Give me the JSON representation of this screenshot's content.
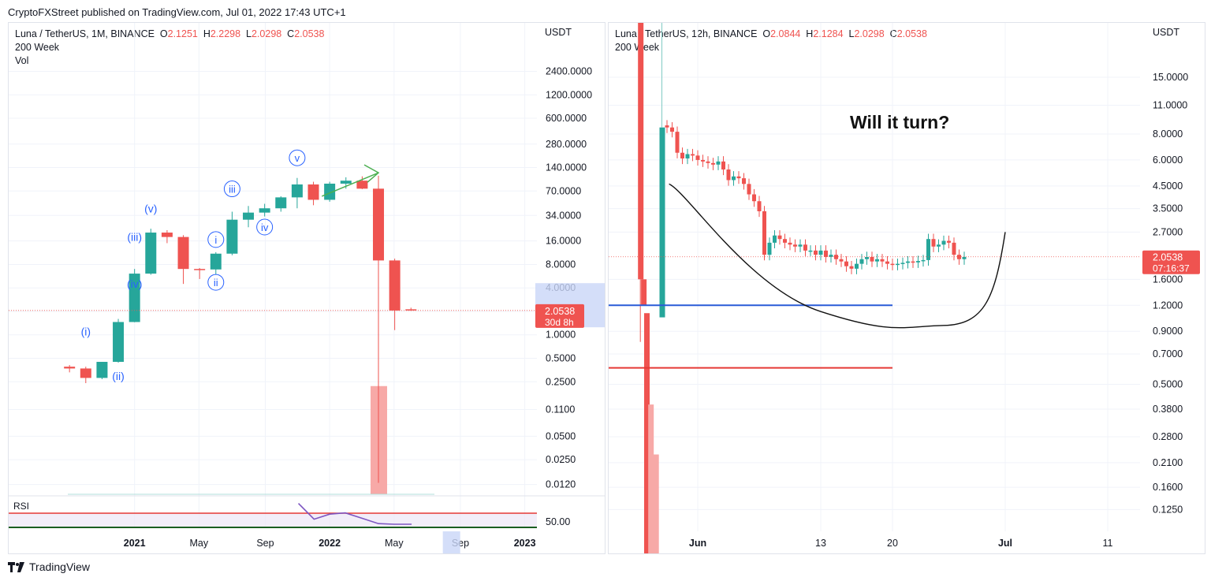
{
  "header": {
    "publisher": "CryptoFXStreet published on TradingView.com, Jul 01, 2022 17:43 UTC+1"
  },
  "brand": {
    "name": "TradingView",
    "icon": "tradingview-logo-icon"
  },
  "colors": {
    "up": "#26a69a",
    "down": "#ef5350",
    "grid": "#f0f3fa",
    "wave": "#2962ff"
  },
  "chart_data": [
    {
      "type": "candlestick",
      "symbol": "Luna / TetherUS, 1M, BINANCE",
      "ohlc_label": {
        "o": "O",
        "o_val": "2.1251",
        "h": "H",
        "h_val": "2.2298",
        "l": "L",
        "l_val": "2.0298",
        "c": "C",
        "c_val": "2.0538"
      },
      "indicators": [
        "200 Week",
        "Vol"
      ],
      "y_axis_title": "USDT",
      "y_scale": "log",
      "ylim": [
        0.009,
        5000
      ],
      "y_ticks": [
        "2400.0000",
        "1200.0000",
        "600.0000",
        "280.0000",
        "140.0000",
        "70.0000",
        "34.0000",
        "16.0000",
        "8.0000",
        "4.0000",
        "2.0000",
        "1.0000",
        "0.5000",
        "0.2500",
        "0.1100",
        "0.0500",
        "0.0250",
        "0.0120"
      ],
      "last_price": "2.0538",
      "countdown": "30d 8h",
      "x_ticks": [
        "2021",
        "May",
        "Sep",
        "2022",
        "May",
        "Sep",
        "2023"
      ],
      "candles": [
        {
          "date": "2020-09",
          "o": 0.39,
          "h": 0.41,
          "l": 0.33,
          "c": 0.37
        },
        {
          "date": "2020-10",
          "o": 0.37,
          "h": 0.39,
          "l": 0.24,
          "c": 0.28
        },
        {
          "date": "2020-11",
          "o": 0.28,
          "h": 0.45,
          "l": 0.27,
          "c": 0.45
        },
        {
          "date": "2020-12",
          "o": 0.45,
          "h": 1.6,
          "l": 0.44,
          "c": 1.46
        },
        {
          "date": "2021-01",
          "o": 1.46,
          "h": 7.0,
          "l": 1.45,
          "c": 6.1
        },
        {
          "date": "2021-02",
          "o": 6.1,
          "h": 23.0,
          "l": 5.9,
          "c": 20.5
        },
        {
          "date": "2021-03",
          "o": 20.5,
          "h": 22.0,
          "l": 15.0,
          "c": 18.0
        },
        {
          "date": "2021-04",
          "o": 18.0,
          "h": 19.0,
          "l": 4.5,
          "c": 7.0
        },
        {
          "date": "2021-05",
          "o": 7.0,
          "h": 7.2,
          "l": 5.2,
          "c": 6.9
        },
        {
          "date": "2021-06",
          "o": 6.9,
          "h": 11.5,
          "l": 5.9,
          "c": 11.0
        },
        {
          "date": "2021-07",
          "o": 11.0,
          "h": 38.0,
          "l": 10.5,
          "c": 30.0
        },
        {
          "date": "2021-08",
          "o": 30.0,
          "h": 45.0,
          "l": 24.0,
          "c": 37.0
        },
        {
          "date": "2021-09",
          "o": 37.0,
          "h": 48.0,
          "l": 33.0,
          "c": 42.0
        },
        {
          "date": "2021-10",
          "o": 42.0,
          "h": 60.0,
          "l": 38.0,
          "c": 58.0
        },
        {
          "date": "2021-11",
          "o": 58.0,
          "h": 103.0,
          "l": 42.0,
          "c": 85.0
        },
        {
          "date": "2021-12",
          "o": 85.0,
          "h": 92.0,
          "l": 46.0,
          "c": 54.0
        },
        {
          "date": "2022-01",
          "o": 54.0,
          "h": 92.0,
          "l": 51.0,
          "c": 87.0
        },
        {
          "date": "2022-02",
          "o": 87.0,
          "h": 105.0,
          "l": 75.0,
          "c": 95.0
        },
        {
          "date": "2022-03",
          "o": 95.0,
          "h": 108.0,
          "l": 74.0,
          "c": 75.0
        },
        {
          "date": "2022-04",
          "o": 75.0,
          "h": 110.0,
          "l": 0.00012,
          "c": 9.0
        },
        {
          "date": "2022-05",
          "o": 9.0,
          "h": 9.5,
          "l": 1.15,
          "c": 2.05
        },
        {
          "date": "2022-06",
          "o": 2.1251,
          "h": 2.2298,
          "l": 2.0298,
          "c": 2.0538
        }
      ],
      "wave_labels": [
        "(i)",
        "(ii)",
        "(iii)",
        "(iv)",
        "(v)",
        "i",
        "ii",
        "iii",
        "iv",
        "v"
      ],
      "rsi": {
        "label": "RSI",
        "tick": "50.00",
        "values": [
          88,
          63,
          71,
          73,
          64,
          56,
          55,
          55
        ]
      }
    },
    {
      "type": "candlestick",
      "symbol": "Luna / TetherUS, 12h, BINANCE",
      "ohlc_label": {
        "o": "O",
        "o_val": "2.0844",
        "h": "H",
        "h_val": "2.1284",
        "l": "L",
        "l_val": "2.0298",
        "c": "C",
        "c_val": "2.0538"
      },
      "indicators": [
        "200 Week"
      ],
      "y_axis_title": "USDT",
      "y_scale": "log",
      "ylim": [
        0.11,
        20
      ],
      "y_ticks": [
        "15.0000",
        "11.0000",
        "8.0000",
        "6.0000",
        "4.5000",
        "3.5000",
        "2.7000",
        "1.6000",
        "1.2000",
        "0.9000",
        "0.7000",
        "0.5000",
        "0.3800",
        "0.2800",
        "0.2100",
        "0.1600",
        "0.1250"
      ],
      "last_price": "2.0538",
      "countdown": "07:16:37",
      "x_ticks": [
        "Jun",
        "13",
        "20",
        "Jul",
        "11"
      ],
      "annotation": "Will it turn?",
      "horizontal_levels": [
        {
          "value": 1.2,
          "color": "#2a5bd7"
        },
        {
          "value": 0.6,
          "color": "#e53935"
        }
      ],
      "closes": [
        8.6,
        8.2,
        6.5,
        6.1,
        6.4,
        6.3,
        6.0,
        5.9,
        5.8,
        5.7,
        5.9,
        5.4,
        4.8,
        5.0,
        4.9,
        4.6,
        4.1,
        3.8,
        3.4,
        2.1,
        2.4,
        2.6,
        2.5,
        2.4,
        2.35,
        2.3,
        2.35,
        2.2,
        2.2,
        2.1,
        2.2,
        2.05,
        2.1,
        2.0,
        1.95,
        1.85,
        1.8,
        1.9,
        2.0,
        2.05,
        1.95,
        2.0,
        1.95,
        1.9,
        1.88,
        1.9,
        1.92,
        1.95,
        1.93,
        1.96,
        1.98,
        2.5,
        2.3,
        2.35,
        2.45,
        2.4,
        2.1,
        2.0,
        2.05
      ]
    }
  ]
}
